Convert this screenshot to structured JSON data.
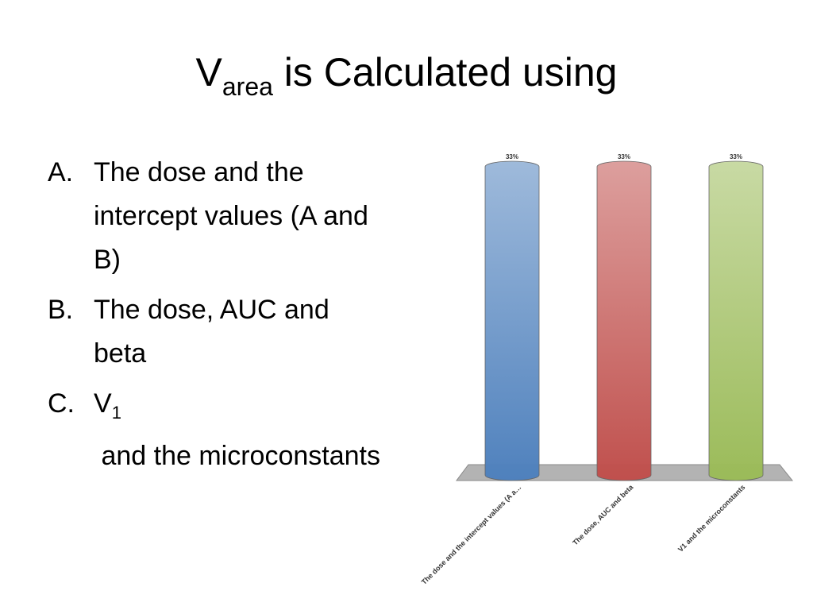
{
  "slide": {
    "title": {
      "main": "V",
      "sub": "area",
      "rest": " is Calculated using"
    },
    "items": [
      {
        "marker": "A.",
        "text": "The dose and the intercept values (A and B)"
      },
      {
        "marker": "B.",
        "text": "The dose, AUC and beta"
      },
      {
        "marker": "C.",
        "main": "V",
        "sub": "1",
        "rest": " and the microconstants"
      }
    ]
  },
  "chart_data": {
    "type": "bar",
    "categories": [
      "The dose and the intercept values (A a…",
      "The dose, AUC and beta",
      "V1 and the microconstants"
    ],
    "values": [
      33,
      33,
      33
    ],
    "value_labels": [
      "33%",
      "33%",
      "33%"
    ],
    "colors": [
      "#4f81bd",
      "#c0504d",
      "#9bbb59"
    ]
  }
}
